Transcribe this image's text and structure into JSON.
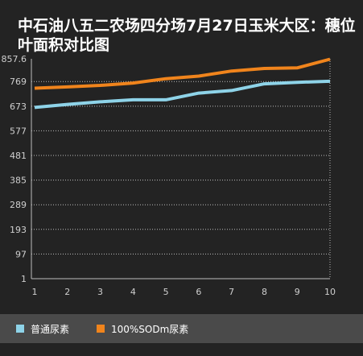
{
  "chart_data": {
    "type": "line",
    "title": "中石油八五二农场四分场7月27日玉米大区：穗位叶面积对比图",
    "categories": [
      "1",
      "2",
      "3",
      "4",
      "5",
      "6",
      "7",
      "8",
      "9",
      "10"
    ],
    "y_ticks": [
      "857.6",
      "769",
      "673",
      "577",
      "481",
      "385",
      "289",
      "193",
      "97",
      "1"
    ],
    "ylim": [
      1,
      857.6
    ],
    "grid": true,
    "legend_position": "bottom",
    "series": [
      {
        "name": "普通尿素",
        "color": "#8ed3e8",
        "values": [
          668,
          680,
          690,
          698,
          698,
          724,
          734,
          760,
          766,
          770
        ]
      },
      {
        "name": "100%SODm尿素",
        "color": "#f0841c",
        "values": [
          743,
          748,
          754,
          763,
          780,
          790,
          810,
          820,
          822,
          856
        ]
      }
    ]
  }
}
